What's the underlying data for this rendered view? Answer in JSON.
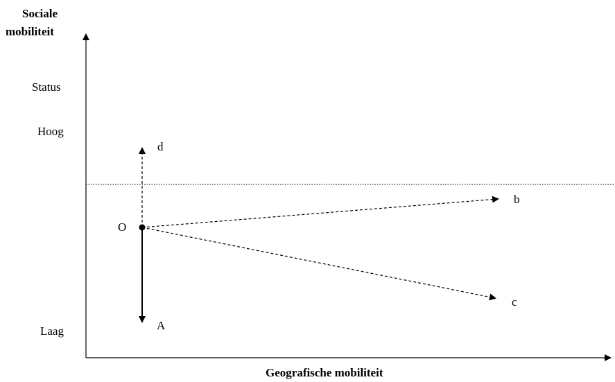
{
  "axes": {
    "y_label_line1": "Sociale",
    "y_label_line2": "mobiliteit",
    "x_label": "Geografische mobiliteit"
  },
  "y_scale": {
    "status": "Status",
    "hoog": "Hoog",
    "laag": "Laag"
  },
  "points": {
    "origin": "O",
    "d": "d",
    "b": "b",
    "c": "c",
    "a": "A"
  },
  "colors": {
    "line": "#000000",
    "background": "#ffffff"
  }
}
